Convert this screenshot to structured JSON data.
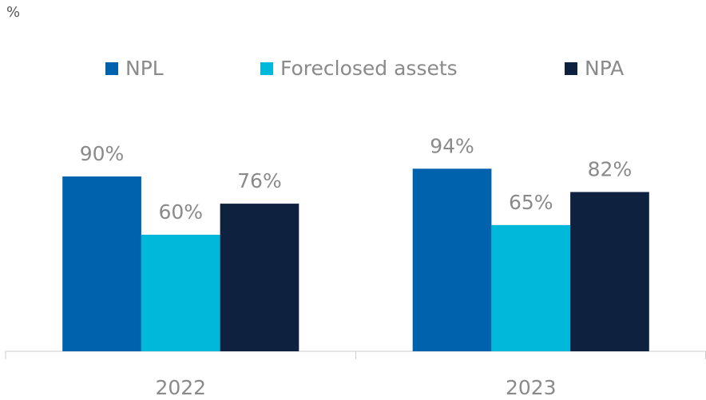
{
  "chart_data": {
    "type": "bar",
    "y_label": "%",
    "categories": [
      "2022",
      "2023"
    ],
    "series": [
      {
        "name": "NPL",
        "color": "#0062ad",
        "values": [
          90,
          94
        ],
        "value_labels": [
          "90%",
          "94%"
        ]
      },
      {
        "name": "Foreclosed assets",
        "color": "#00b8d9",
        "values": [
          60,
          65
        ],
        "value_labels": [
          "60%",
          "65%"
        ]
      },
      {
        "name": "NPA",
        "color": "#0e213f",
        "values": [
          76,
          82
        ],
        "value_labels": [
          "76%",
          "82%"
        ]
      }
    ]
  }
}
